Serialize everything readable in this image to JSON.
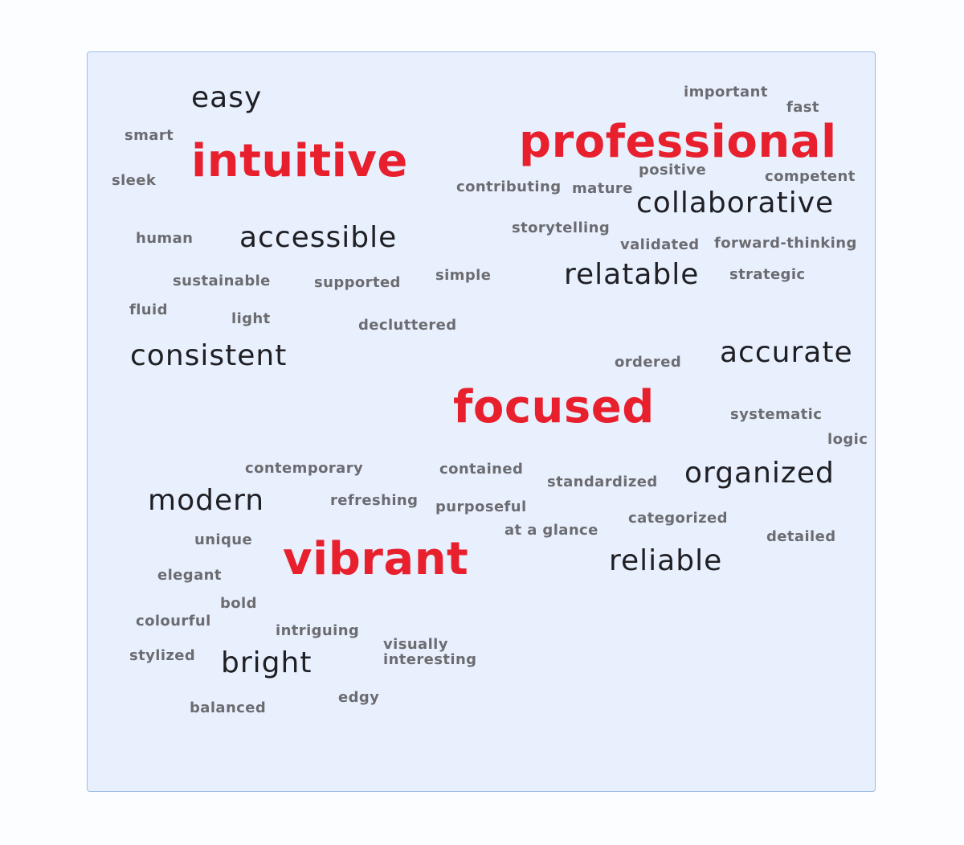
{
  "colors": {
    "emphasis": "#e8202e",
    "primary_text": "#1f1f24",
    "secondary_text": "#6c6c70",
    "panel_background": "#e8f0fe",
    "panel_border": "#9dbbe6"
  },
  "words": {
    "easy": "easy",
    "important": "important",
    "fast": "fast",
    "smart": "smart",
    "intuitive": "intuitive",
    "professional": "professional",
    "sleek": "sleek",
    "positive": "positive",
    "competent": "competent",
    "contributing": "contributing",
    "mature": "mature",
    "collaborative": "collaborative",
    "human": "human",
    "accessible": "accessible",
    "storytelling": "storytelling",
    "validated": "validated",
    "forward_thinking": "forward-thinking",
    "sustainable": "sustainable",
    "supported": "supported",
    "simple": "simple",
    "relatable": "relatable",
    "strategic": "strategic",
    "fluid": "fluid",
    "light": "light",
    "decluttered": "decluttered",
    "consistent": "consistent",
    "ordered": "ordered",
    "accurate": "accurate",
    "focused": "focused",
    "systematic": "systematic",
    "logic": "logic",
    "contemporary": "contemporary",
    "contained": "contained",
    "standardized": "standardized",
    "organized": "organized",
    "modern": "modern",
    "refreshing": "refreshing",
    "purposeful": "purposeful",
    "categorized": "categorized",
    "at_a_glance": "at a glance",
    "detailed": "detailed",
    "unique": "unique",
    "vibrant": "vibrant",
    "reliable": "reliable",
    "elegant": "elegant",
    "bold": "bold",
    "colourful": "colourful",
    "intriguing": "intriguing",
    "visually": "visually",
    "interesting": "interesting",
    "stylized": "stylized",
    "bright": "bright",
    "edgy": "edgy",
    "balanced": "balanced"
  }
}
